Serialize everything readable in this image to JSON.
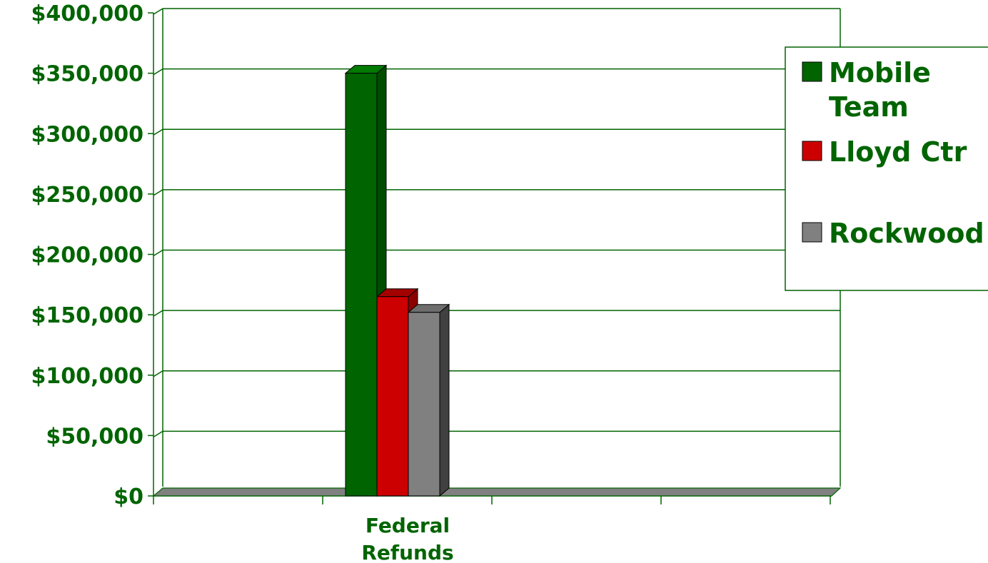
{
  "chart_data": {
    "type": "bar",
    "categories": [
      "Federal Refunds",
      "",
      "",
      ""
    ],
    "category_label_lines": [
      [
        "Federal",
        "Refunds"
      ]
    ],
    "series": [
      {
        "name": "Mobile Team",
        "label_lines": [
          "Mobile",
          "Team"
        ],
        "values": [
          350000,
          0,
          0,
          0
        ],
        "color": "#006400",
        "side_color": "#004d00",
        "top_color": "#007a00"
      },
      {
        "name": "Lloyd Ctr",
        "label_lines": [
          "Lloyd Ctr"
        ],
        "values": [
          165000,
          0,
          0,
          0
        ],
        "color": "#cc0000",
        "side_color": "#8b0000",
        "top_color": "#a30000"
      },
      {
        "name": "Rockwood",
        "label_lines": [
          "Rockwood"
        ],
        "values": [
          152000,
          0,
          0,
          0
        ],
        "color": "#808080",
        "side_color": "#404040",
        "top_color": "#6e6e6e"
      }
    ],
    "y_ticks": [
      "$0",
      "$50,000",
      "$100,000",
      "$150,000",
      "$200,000",
      "$250,000",
      "$300,000",
      "$350,000",
      "$400,000"
    ],
    "ylim": [
      0,
      400000
    ],
    "title": "",
    "xlabel": "",
    "ylabel": "",
    "grid": true,
    "legend_position": "right",
    "axis_color": "#006400",
    "gridline_color": "#006400",
    "floor_color": "#808080"
  }
}
